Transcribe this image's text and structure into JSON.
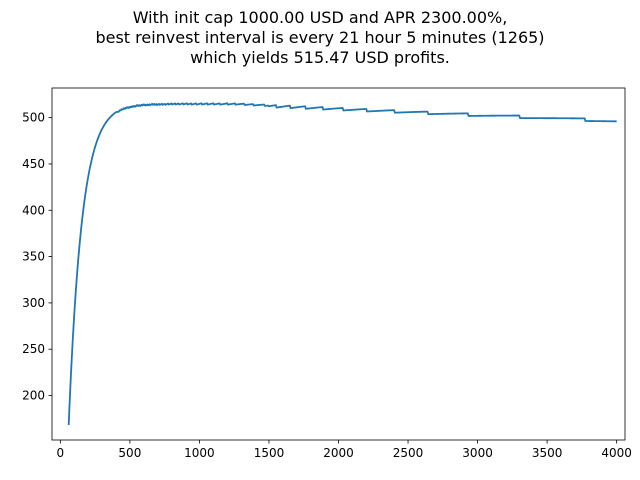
{
  "chart_data": {
    "type": "line",
    "title_lines": [
      "With init cap 1000.00 USD and APR 2300.00%,",
      "best reinvest interval is every 21 hour 5 minutes (1265)",
      "which yields 515.47 USD profits."
    ],
    "xlabel": "",
    "ylabel": "",
    "xlim": [
      -60,
      4060
    ],
    "ylim": [
      152,
      532
    ],
    "xticks": [
      0,
      500,
      1000,
      1500,
      2000,
      2500,
      3000,
      3500,
      4000
    ],
    "yticks": [
      200,
      250,
      300,
      350,
      400,
      450,
      500
    ],
    "grid": false,
    "line_color": "#1f77b4",
    "x_start": 60,
    "x_end": 4000,
    "asymptote": 517.4,
    "decay": 0.19,
    "tail_slope": 0.00033,
    "series": [
      {
        "values": [
          [
            60,
            170
          ],
          [
            70,
            230
          ],
          [
            80,
            287
          ],
          [
            90,
            329
          ],
          [
            100,
            360
          ],
          [
            120,
            391
          ],
          [
            150,
            416
          ],
          [
            200,
            440
          ],
          [
            250,
            458
          ],
          [
            300,
            472
          ],
          [
            350,
            482
          ],
          [
            400,
            488
          ],
          [
            500,
            497
          ],
          [
            600,
            503
          ],
          [
            700,
            507
          ],
          [
            800,
            510
          ],
          [
            900,
            512
          ],
          [
            1000,
            513
          ],
          [
            1100,
            514
          ],
          [
            1265,
            515.47
          ],
          [
            1500,
            515
          ],
          [
            1700,
            514
          ],
          [
            2000,
            512
          ],
          [
            2500,
            508
          ],
          [
            3000,
            505
          ],
          [
            3350,
            499
          ],
          [
            3500,
            500
          ],
          [
            4000,
            497
          ]
        ]
      }
    ]
  }
}
